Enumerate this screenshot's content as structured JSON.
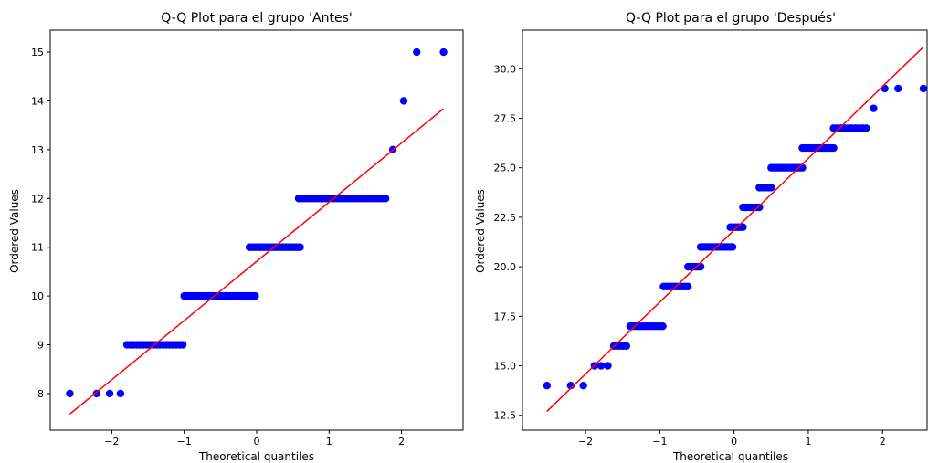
{
  "chart_data": [
    {
      "type": "scatter",
      "title": "Q-Q Plot para el grupo 'Antes'",
      "xlabel": "Theoretical quantiles",
      "ylabel": "Ordered Values",
      "xlim": [
        -2.85,
        2.85
      ],
      "ylim": [
        7.25,
        15.45
      ],
      "xticks": [
        -2,
        -1,
        0,
        1,
        2
      ],
      "xtick_labels": [
        "−2",
        "−1",
        "0",
        "1",
        "2"
      ],
      "yticks": [
        8,
        9,
        10,
        11,
        12,
        13,
        14,
        15
      ],
      "ytick_labels": [
        "8",
        "9",
        "10",
        "11",
        "12",
        "13",
        "14",
        "15"
      ],
      "grid": false,
      "point_color": "#0000ff",
      "line_color": "#ff0000",
      "fit_line": {
        "x": [
          -2.58,
          2.58
        ],
        "y": [
          7.58,
          13.84
        ]
      },
      "groups": [
        {
          "y": 8,
          "x": [
            -2.58,
            -2.21,
            -2.03,
            -1.88
          ]
        },
        {
          "y": 9,
          "x_range": [
            -1.79,
            -1.02
          ],
          "n": 18
        },
        {
          "y": 10,
          "x_range": [
            -1.0,
            -0.02
          ],
          "n": 50
        },
        {
          "y": 11,
          "x_range": [
            -0.1,
            0.6
          ],
          "n": 30
        },
        {
          "y": 12,
          "x_range": [
            0.58,
            1.78
          ],
          "n": 40
        },
        {
          "y": 13,
          "x": [
            1.88
          ]
        },
        {
          "y": 14,
          "x": [
            2.03
          ]
        },
        {
          "y": 15,
          "x": [
            2.21,
            2.58
          ]
        }
      ]
    },
    {
      "type": "scatter",
      "title": "Q-Q Plot para el grupo 'Después'",
      "xlabel": "Theoretical quantiles",
      "ylabel": "Ordered Values",
      "xlim": [
        -2.85,
        2.6
      ],
      "ylim": [
        11.75,
        31.95
      ],
      "xticks": [
        -2,
        -1,
        0,
        1,
        2
      ],
      "xtick_labels": [
        "−2",
        "−1",
        "0",
        "1",
        "2"
      ],
      "yticks": [
        12.5,
        15.0,
        17.5,
        20.0,
        22.5,
        25.0,
        27.5,
        30.0
      ],
      "ytick_labels": [
        "12.5",
        "15.0",
        "17.5",
        "20.0",
        "22.5",
        "25.0",
        "27.5",
        "30.0"
      ],
      "grid": false,
      "point_color": "#0000ff",
      "line_color": "#ff0000",
      "fit_line": {
        "x": [
          -2.52,
          2.55
        ],
        "y": [
          12.7,
          31.1
        ]
      },
      "groups": [
        {
          "y": 14,
          "x": [
            -2.52,
            -2.2,
            -2.03
          ]
        },
        {
          "y": 15,
          "x": [
            -1.88,
            -1.79,
            -1.7
          ]
        },
        {
          "y": 16,
          "x_range": [
            -1.62,
            -1.45
          ],
          "n": 5
        },
        {
          "y": 17,
          "x_range": [
            -1.4,
            -0.96
          ],
          "n": 16
        },
        {
          "y": 19,
          "x_range": [
            -0.95,
            -0.62
          ],
          "n": 12
        },
        {
          "y": 20,
          "x_range": [
            -0.62,
            -0.45
          ],
          "n": 6
        },
        {
          "y": 21,
          "x_range": [
            -0.45,
            -0.02
          ],
          "n": 16
        },
        {
          "y": 22,
          "x_range": [
            -0.05,
            0.12
          ],
          "n": 6
        },
        {
          "y": 23,
          "x_range": [
            0.12,
            0.34
          ],
          "n": 8
        },
        {
          "y": 24,
          "x_range": [
            0.34,
            0.5
          ],
          "n": 6
        },
        {
          "y": 25,
          "x_range": [
            0.5,
            0.92
          ],
          "n": 15
        },
        {
          "y": 26,
          "x_range": [
            0.92,
            1.34
          ],
          "n": 14
        },
        {
          "y": 27,
          "x_range": [
            1.34,
            1.78
          ],
          "n": 10
        },
        {
          "y": 28,
          "x": [
            1.88
          ]
        },
        {
          "y": 29,
          "x": [
            2.03,
            2.21,
            2.55
          ]
        }
      ]
    }
  ]
}
